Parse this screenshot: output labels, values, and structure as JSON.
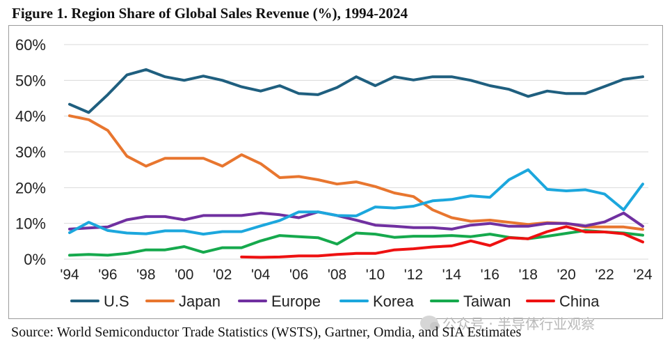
{
  "page": {
    "title": "Figure 1. Region Share of Global Sales Revenue (%), 1994-2024",
    "source": "Source: World Semiconductor Trade Statistics (WSTS), Gartner, Omdia, and SIA Estimates",
    "watermark": "公众号 · 半导体行业观察"
  },
  "chart_data": {
    "type": "line",
    "title": "Figure 1. Region Share of Global Sales Revenue (%), 1994-2024",
    "xlabel": "",
    "ylabel": "",
    "ylim": [
      0,
      60
    ],
    "yticks": [
      0,
      10,
      20,
      30,
      40,
      50,
      60
    ],
    "ytick_labels": [
      "0%",
      "10%",
      "20%",
      "30%",
      "40%",
      "50%",
      "60%"
    ],
    "x": [
      1994,
      1995,
      1996,
      1997,
      1998,
      1999,
      2000,
      2001,
      2002,
      2003,
      2004,
      2005,
      2006,
      2007,
      2008,
      2009,
      2010,
      2011,
      2012,
      2013,
      2014,
      2015,
      2016,
      2017,
      2018,
      2019,
      2020,
      2021,
      2022,
      2023,
      2024
    ],
    "xticks": [
      1994,
      1996,
      1998,
      2000,
      2002,
      2004,
      2006,
      2008,
      2010,
      2012,
      2014,
      2016,
      2018,
      2020,
      2022,
      2024
    ],
    "xtick_labels": [
      "'94",
      "'96",
      "'98",
      "'00",
      "'02",
      "'04",
      "'06",
      "'08",
      "'10",
      "'12",
      "'14",
      "'16",
      "'18",
      "'20",
      "'22",
      "'24"
    ],
    "grid": "horizontal",
    "legend_position": "bottom",
    "series": [
      {
        "name": "U.S",
        "color": "#1f5f7f",
        "values": [
          43.3,
          41.0,
          46.0,
          51.5,
          53.0,
          51.0,
          50.0,
          51.2,
          50.0,
          48.2,
          47.0,
          48.5,
          46.3,
          46.0,
          48.0,
          51.0,
          48.5,
          51.0,
          50.1,
          51.0,
          51.0,
          50.0,
          48.5,
          47.5,
          45.5,
          47.0,
          46.3,
          46.3,
          48.3,
          50.3,
          51.0
        ]
      },
      {
        "name": "Japan",
        "color": "#e8762f",
        "values": [
          40.1,
          39.0,
          36.0,
          28.8,
          26.0,
          28.2,
          28.2,
          28.2,
          26.0,
          29.2,
          26.7,
          22.8,
          23.1,
          22.2,
          21.0,
          21.6,
          20.3,
          18.5,
          17.5,
          13.8,
          11.6,
          10.6,
          10.9,
          10.3,
          9.7,
          10.2,
          10.0,
          9.0,
          9.0,
          9.0,
          8.3
        ]
      },
      {
        "name": "Europe",
        "color": "#7030a0",
        "values": [
          8.4,
          8.7,
          9.0,
          11.0,
          11.9,
          11.9,
          11.0,
          12.2,
          12.2,
          12.2,
          12.9,
          12.4,
          11.6,
          13.2,
          12.2,
          10.9,
          9.5,
          9.2,
          8.8,
          8.8,
          8.4,
          9.5,
          10.0,
          9.2,
          9.2,
          10.0,
          10.0,
          9.3,
          10.4,
          12.9,
          9.2
        ]
      },
      {
        "name": "Korea",
        "color": "#1ca7dd",
        "values": [
          7.4,
          10.3,
          8.0,
          7.3,
          7.1,
          7.9,
          7.9,
          7.0,
          7.7,
          7.7,
          9.3,
          10.8,
          13.2,
          13.2,
          12.2,
          12.1,
          14.6,
          14.3,
          14.8,
          16.3,
          16.7,
          17.7,
          17.3,
          22.2,
          25.0,
          19.5,
          19.1,
          19.4,
          18.2,
          13.8,
          21.0
        ]
      },
      {
        "name": "Taiwan",
        "color": "#16a94d",
        "values": [
          1.1,
          1.3,
          1.1,
          1.6,
          2.6,
          2.6,
          3.5,
          1.9,
          3.2,
          3.2,
          5.1,
          6.6,
          6.3,
          6.0,
          4.2,
          7.3,
          7.0,
          6.1,
          6.4,
          6.4,
          6.6,
          6.3,
          7.0,
          6.1,
          5.7,
          6.4,
          7.2,
          8.0,
          7.6,
          7.3,
          6.7
        ]
      },
      {
        "name": "China",
        "color": "#ee1111",
        "values": [
          null,
          null,
          null,
          null,
          null,
          null,
          null,
          null,
          null,
          0.6,
          0.5,
          0.6,
          0.9,
          0.9,
          1.3,
          1.6,
          1.6,
          2.6,
          2.9,
          3.4,
          3.7,
          5.1,
          3.8,
          6.0,
          5.7,
          7.7,
          9.1,
          7.6,
          7.6,
          7.1,
          4.8
        ]
      }
    ]
  }
}
